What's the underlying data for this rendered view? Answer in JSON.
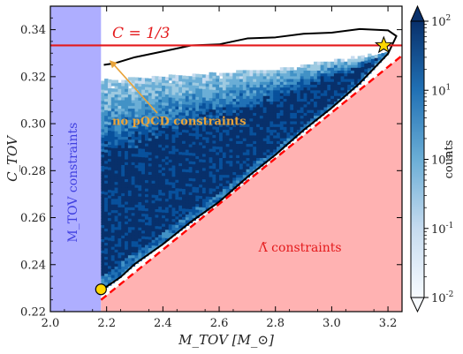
{
  "chart_data": {
    "type": "heatmap",
    "title": "",
    "xlabel": "M_TOV [M_⊙]",
    "ylabel": "C_TOV",
    "xlim": [
      2.0,
      3.25
    ],
    "ylim": [
      0.22,
      0.35
    ],
    "xticks": [
      2.0,
      2.2,
      2.4,
      2.6,
      2.8,
      3.0,
      3.2
    ],
    "yticks": [
      0.22,
      0.24,
      0.26,
      0.28,
      0.3,
      0.32,
      0.34
    ],
    "xtick_labels": [
      "2.0",
      "2.2",
      "2.4",
      "2.6",
      "2.8",
      "3.0",
      "3.2"
    ],
    "ytick_labels": [
      "0.22",
      "0.24",
      "0.26",
      "0.28",
      "0.30",
      "0.32",
      "0.34"
    ],
    "grid": false,
    "colorbar": {
      "label": "counts",
      "scale": "log",
      "range": [
        0.01,
        100
      ],
      "ticks": [
        0.01,
        0.1,
        1,
        10,
        100
      ],
      "tick_labels": [
        "10^-2",
        "10^-1",
        "10^0",
        "10^1",
        "10^2"
      ],
      "colormap": "Blues"
    },
    "regions": [
      {
        "label": "M_TOV constraints",
        "x_range": [
          2.0,
          2.18
        ],
        "color": "#aeaeff"
      },
      {
        "label": "Λ̃ constraints",
        "lower_boundary": [
          [
            2.18,
            0.225
          ],
          [
            3.25,
            0.329
          ]
        ],
        "color": "#ffb2b2"
      }
    ],
    "lines": [
      {
        "label": "C = 1/3",
        "y": 0.3333,
        "color": "#e41a1c",
        "style": "solid"
      },
      {
        "label": "",
        "points": [
          [
            2.18,
            0.225
          ],
          [
            3.25,
            0.329
          ]
        ],
        "color": "#ff0000",
        "style": "dashed"
      }
    ],
    "contour": {
      "color": "#000000",
      "upper_left_points": [
        [
          2.19,
          0.325
        ],
        [
          2.23,
          0.326
        ],
        [
          2.3,
          0.328
        ],
        [
          2.4,
          0.331
        ],
        [
          2.5,
          0.333
        ],
        [
          2.6,
          0.334
        ],
        [
          2.7,
          0.336
        ],
        [
          2.8,
          0.337
        ],
        [
          2.9,
          0.338
        ],
        [
          3.0,
          0.339
        ],
        [
          3.1,
          0.34
        ],
        [
          3.2,
          0.34
        ],
        [
          3.23,
          0.337
        ]
      ],
      "lower_right_points": [
        [
          3.23,
          0.337
        ],
        [
          3.2,
          0.33
        ],
        [
          3.1,
          0.317
        ],
        [
          3.0,
          0.307
        ],
        [
          2.9,
          0.297
        ],
        [
          2.8,
          0.287
        ],
        [
          2.7,
          0.277
        ],
        [
          2.6,
          0.267
        ],
        [
          2.5,
          0.258
        ],
        [
          2.4,
          0.249
        ],
        [
          2.3,
          0.24
        ],
        [
          2.25,
          0.235
        ],
        [
          2.22,
          0.232
        ],
        [
          2.18,
          0.229
        ]
      ]
    },
    "markers": [
      {
        "shape": "circle",
        "x": 2.18,
        "y": 0.2295,
        "color": "#ffd700"
      },
      {
        "shape": "star",
        "x": 3.185,
        "y": 0.3333,
        "color": "#ffd700"
      }
    ],
    "annotations": [
      {
        "text": "C = 1/3",
        "color": "#e41a1c"
      },
      {
        "text": "no pQCD constraints",
        "color": "#e8a33a",
        "arrow_to": [
          2.21,
          0.327
        ]
      },
      {
        "text": "Λ̃ constraints",
        "color": "#e41a1c"
      },
      {
        "text": "M_TOV constraints",
        "color": "#4040e0"
      }
    ]
  }
}
